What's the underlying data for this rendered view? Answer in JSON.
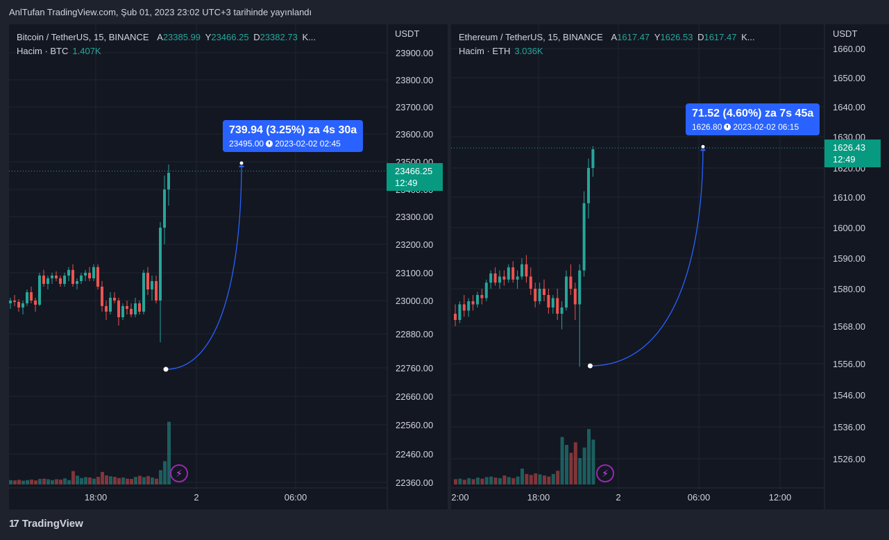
{
  "header": "AnlTufan TradingView.com, Şub 01, 2023 23:02 UTC+3 tarihinde yayınlandı",
  "footer_brand": "TradingView",
  "colors": {
    "up": "#26a69a",
    "down": "#ef5350",
    "accent": "#2962ff",
    "background": "#131722"
  },
  "panels": [
    {
      "title": "Bitcoin / TetherUS, 15, BINANCE",
      "ohlc": {
        "a_label": "A",
        "a": "23385.99",
        "y_label": "Y",
        "y": "23466.25",
        "d_label": "D",
        "d": "23382.73",
        "k": "K..."
      },
      "volume_label": "Hacim · BTC",
      "volume_value": "1.407K",
      "currency": "USDT",
      "price_tag": {
        "price": "23466.25",
        "countdown": "12:49"
      },
      "callout": {
        "main": "739.94 (3.25%) za 4s 30a",
        "price": "23495.00",
        "datetime": "2023-02-02  02:45"
      }
    },
    {
      "title": "Ethereum / TetherUS, 15, BINANCE",
      "ohlc": {
        "a_label": "A",
        "a": "1617.47",
        "y_label": "Y",
        "y": "1626.53",
        "d_label": "D",
        "d": "1617.47",
        "k": "K..."
      },
      "volume_label": "Hacim · ETH",
      "volume_value": "3.036K",
      "currency": "USDT",
      "price_tag": {
        "price": "1626.43",
        "countdown": "12:49"
      },
      "callout": {
        "main": "71.52 (4.60%) za 7s 45a",
        "price": "1626.80",
        "datetime": "2023-02-02  06:15"
      }
    }
  ],
  "chart_data": [
    {
      "type": "candlestick",
      "title": "Bitcoin / TetherUS, 15, BINANCE",
      "y_ticks": [
        23900,
        23800,
        23700,
        23600,
        23500,
        23400,
        23300,
        23200,
        23100,
        23000,
        22880,
        22760,
        22660,
        22560,
        22460,
        22360
      ],
      "y_tick_labels": [
        "23900.00",
        "23800.00",
        "23700.00",
        "23600.00",
        "23500.00",
        "23400.00",
        "23300.00",
        "23200.00",
        "23100.00",
        "23000.00",
        "22880.00",
        "22760.00",
        "22660.00",
        "22560.00",
        "22460.00",
        "22360.00"
      ],
      "x_tick_labels": [
        "18:00",
        "2",
        "06:00"
      ],
      "last_price": 23466.25,
      "projection": {
        "from_price": 22755,
        "to_price": 23495.0,
        "change": 739.94,
        "change_pct": 3.25
      },
      "candles": [
        [
          22990,
          23010,
          22970,
          23000
        ],
        [
          23000,
          23020,
          22980,
          22995
        ],
        [
          22995,
          23005,
          22960,
          22975
        ],
        [
          22975,
          23000,
          22950,
          22990
        ],
        [
          22990,
          23040,
          22980,
          23030
        ],
        [
          23030,
          23050,
          22990,
          23000
        ],
        [
          23000,
          23010,
          22960,
          22985
        ],
        [
          22985,
          23100,
          22980,
          23090
        ],
        [
          23090,
          23110,
          23050,
          23060
        ],
        [
          23060,
          23090,
          23040,
          23080
        ],
        [
          23080,
          23100,
          23060,
          23090
        ],
        [
          23090,
          23105,
          23070,
          23080
        ],
        [
          23080,
          23090,
          23050,
          23060
        ],
        [
          23060,
          23100,
          23050,
          23090
        ],
        [
          23090,
          23120,
          23070,
          23110
        ],
        [
          23110,
          23130,
          23050,
          23060
        ],
        [
          23060,
          23080,
          23040,
          23070
        ],
        [
          23070,
          23100,
          23060,
          23090
        ],
        [
          23090,
          23110,
          23070,
          23100
        ],
        [
          23100,
          23120,
          23070,
          23080
        ],
        [
          23080,
          23130,
          23070,
          23120
        ],
        [
          23120,
          23130,
          23040,
          23050
        ],
        [
          23050,
          23070,
          22960,
          22980
        ],
        [
          22980,
          23000,
          22930,
          22960
        ],
        [
          22960,
          23030,
          22950,
          23010
        ],
        [
          23010,
          23030,
          22990,
          23000
        ],
        [
          23000,
          23010,
          22910,
          22940
        ],
        [
          22940,
          22990,
          22930,
          22980
        ],
        [
          22980,
          23000,
          22950,
          22970
        ],
        [
          22970,
          22990,
          22940,
          22950
        ],
        [
          22950,
          23010,
          22940,
          22990
        ],
        [
          22990,
          23000,
          22950,
          22960
        ],
        [
          22960,
          23110,
          22950,
          23100
        ],
        [
          23100,
          23120,
          23020,
          23040
        ],
        [
          23040,
          23090,
          23000,
          23070
        ],
        [
          23070,
          23090,
          22990,
          23000
        ],
        [
          23000,
          23280,
          22850,
          23260
        ],
        [
          23260,
          23450,
          23200,
          23400
        ],
        [
          23400,
          23490,
          23340,
          23460
        ]
      ],
      "volumes": [
        30,
        28,
        32,
        26,
        30,
        34,
        28,
        38,
        40,
        36,
        30,
        36,
        34,
        42,
        30,
        92,
        60,
        44,
        50,
        48,
        40,
        52,
        86,
        62,
        56,
        52,
        44,
        48,
        40,
        38,
        52,
        60,
        50,
        58,
        48,
        40,
        98,
        160,
        430
      ]
    },
    {
      "type": "candlestick",
      "title": "Ethereum / TetherUS, 15, BINANCE",
      "y_ticks": [
        1660,
        1650,
        1640,
        1630,
        1620,
        1610,
        1600,
        1590,
        1580,
        1568,
        1556,
        1546,
        1536,
        1526
      ],
      "y_tick_labels": [
        "1660.00",
        "1650.00",
        "1640.00",
        "1630.00",
        "1620.00",
        "1610.00",
        "1600.00",
        "1590.00",
        "1580.00",
        "1568.00",
        "1556.00",
        "1546.00",
        "1536.00",
        "1526.00"
      ],
      "x_tick_labels": [
        "2:00",
        "18:00",
        "2",
        "06:00",
        "12:00"
      ],
      "last_price": 1626.43,
      "projection": {
        "from_price": 1555.3,
        "to_price": 1626.8,
        "change": 71.52,
        "change_pct": 4.6
      },
      "candles": [
        [
          1572,
          1575,
          1568,
          1570
        ],
        [
          1570,
          1576,
          1569,
          1575
        ],
        [
          1575,
          1578,
          1571,
          1573
        ],
        [
          1573,
          1577,
          1571,
          1576
        ],
        [
          1576,
          1578,
          1573,
          1575
        ],
        [
          1575,
          1579,
          1574,
          1578
        ],
        [
          1578,
          1580,
          1575,
          1577
        ],
        [
          1577,
          1583,
          1576,
          1582
        ],
        [
          1582,
          1586,
          1580,
          1585
        ],
        [
          1585,
          1587,
          1581,
          1582
        ],
        [
          1582,
          1586,
          1580,
          1584
        ],
        [
          1584,
          1586,
          1581,
          1583
        ],
        [
          1583,
          1588,
          1582,
          1587
        ],
        [
          1587,
          1589,
          1582,
          1583
        ],
        [
          1583,
          1586,
          1580,
          1584
        ],
        [
          1584,
          1590,
          1583,
          1588
        ],
        [
          1588,
          1591,
          1582,
          1584
        ],
        [
          1584,
          1587,
          1578,
          1580
        ],
        [
          1580,
          1582,
          1574,
          1576
        ],
        [
          1576,
          1582,
          1575,
          1580
        ],
        [
          1580,
          1583,
          1576,
          1578
        ],
        [
          1578,
          1580,
          1572,
          1574
        ],
        [
          1574,
          1578,
          1572,
          1577
        ],
        [
          1577,
          1580,
          1570,
          1572
        ],
        [
          1572,
          1576,
          1567,
          1574
        ],
        [
          1574,
          1586,
          1573,
          1584
        ],
        [
          1584,
          1588,
          1578,
          1580
        ],
        [
          1580,
          1582,
          1570,
          1575
        ],
        [
          1575,
          1588,
          1555,
          1586
        ],
        [
          1586,
          1612,
          1584,
          1608
        ],
        [
          1608,
          1623,
          1603,
          1620
        ],
        [
          1620,
          1627,
          1617,
          1626
        ]
      ],
      "volumes": [
        20,
        22,
        18,
        24,
        20,
        26,
        22,
        28,
        30,
        26,
        24,
        34,
        28,
        24,
        30,
        60,
        40,
        36,
        42,
        38,
        34,
        30,
        40,
        52,
        180,
        150,
        120,
        160,
        100,
        140,
        210,
        170
      ]
    }
  ]
}
